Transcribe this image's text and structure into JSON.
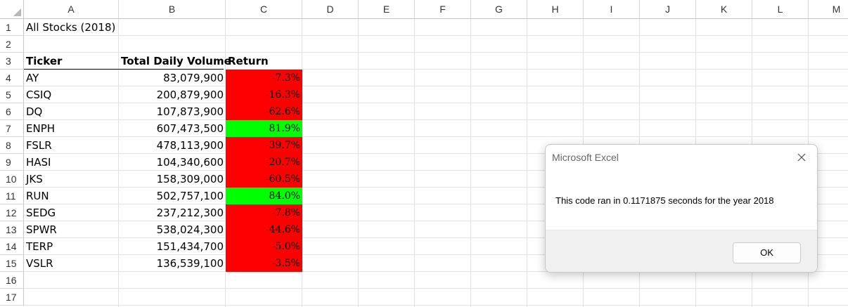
{
  "spreadsheet": {
    "columns": [
      "A",
      "B",
      "C",
      "D",
      "E",
      "F",
      "G",
      "H",
      "I",
      "J",
      "K",
      "L",
      "M"
    ],
    "rows": [
      "1",
      "2",
      "3",
      "4",
      "5",
      "6",
      "7",
      "8",
      "9",
      "10",
      "11",
      "12",
      "13",
      "14",
      "15",
      "16",
      "17"
    ],
    "title_cell": "All Stocks (2018)",
    "headers": {
      "ticker": "Ticker",
      "volume": "Total Daily Volume",
      "return": "Return"
    },
    "data_rows": [
      {
        "ticker": "AY",
        "volume": "83,079,900",
        "return": "-7.3%",
        "status": "negative"
      },
      {
        "ticker": "CSIQ",
        "volume": "200,879,900",
        "return": "-16.3%",
        "status": "negative"
      },
      {
        "ticker": "DQ",
        "volume": "107,873,900",
        "return": "-62.6%",
        "status": "negative"
      },
      {
        "ticker": "ENPH",
        "volume": "607,473,500",
        "return": "81.9%",
        "status": "positive"
      },
      {
        "ticker": "FSLR",
        "volume": "478,113,900",
        "return": "-39.7%",
        "status": "negative"
      },
      {
        "ticker": "HASI",
        "volume": "104,340,600",
        "return": "-20.7%",
        "status": "negative"
      },
      {
        "ticker": "JKS",
        "volume": "158,309,000",
        "return": "-60.5%",
        "status": "negative"
      },
      {
        "ticker": "RUN",
        "volume": "502,757,100",
        "return": "84.0%",
        "status": "positive"
      },
      {
        "ticker": "SEDG",
        "volume": "237,212,300",
        "return": "-7.8%",
        "status": "negative"
      },
      {
        "ticker": "SPWR",
        "volume": "538,024,300",
        "return": "-44.6%",
        "status": "negative"
      },
      {
        "ticker": "TERP",
        "volume": "151,434,700",
        "return": "-5.0%",
        "status": "negative"
      },
      {
        "ticker": "VSLR",
        "volume": "136,539,100",
        "return": "-3.5%",
        "status": "negative"
      }
    ],
    "colors": {
      "negative_fill": "#ff0000",
      "positive_fill": "#00ff00"
    }
  },
  "dialog": {
    "title": "Microsoft Excel",
    "message": "This code ran in 0.1171875 seconds for the year 2018",
    "ok_label": "OK",
    "close_icon": "close-icon"
  }
}
